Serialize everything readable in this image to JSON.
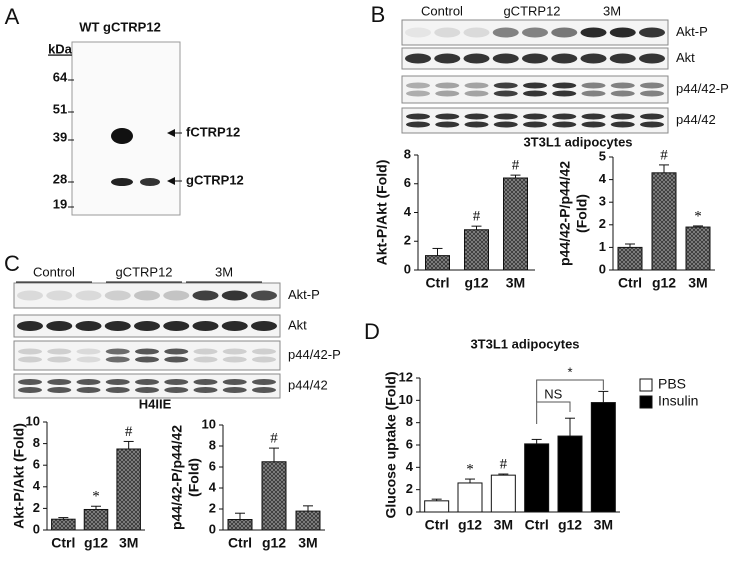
{
  "panel_letters": [
    "A",
    "B",
    "C",
    "D"
  ],
  "panel_a": {
    "title": "WT gCTRP12",
    "unit": "kDa",
    "markers": [
      "64",
      "51",
      "39",
      "28",
      "19"
    ],
    "bands": [
      "fCTRP12",
      "gCTRP12"
    ]
  },
  "panel_b": {
    "groups": [
      "Control",
      "gCTRP12",
      "3M"
    ],
    "rows": [
      "Akt-P",
      "Akt",
      "p44/42-P",
      "p44/42"
    ],
    "caption": "3T3L1 adipocytes"
  },
  "panel_c": {
    "groups": [
      "Control",
      "gCTRP12",
      "3M"
    ],
    "rows": [
      "Akt-P",
      "Akt",
      "p44/42-P",
      "p44/42"
    ],
    "caption": "H4IIE"
  },
  "chart_data": [
    {
      "type": "bar",
      "ylabel": "Akt-P/Akt (Fold)",
      "categories": [
        "Ctrl",
        "g12",
        "3M"
      ],
      "values": [
        1.0,
        2.8,
        6.4
      ],
      "errors": [
        0.5,
        0.25,
        0.2
      ],
      "markers": [
        null,
        "#",
        "#"
      ],
      "color": "#8a8a8a",
      "pattern": "crosshatch",
      "ylim": [
        0,
        8
      ],
      "yticks": [
        0,
        2,
        4,
        6,
        8
      ]
    },
    {
      "type": "bar",
      "ylabel": [
        "p44/42-P/p44/42",
        "(Fold)"
      ],
      "categories": [
        "Ctrl",
        "g12",
        "3M"
      ],
      "values": [
        1.0,
        4.3,
        1.9
      ],
      "errors": [
        0.15,
        0.35,
        0.05
      ],
      "markers": [
        null,
        "#",
        "*"
      ],
      "color": "#8a8a8a",
      "pattern": "crosshatch",
      "ylim": [
        0,
        5
      ],
      "yticks": [
        0,
        1,
        2,
        3,
        4,
        5
      ]
    },
    {
      "type": "bar",
      "ylabel": "Akt-P/Akt (Fold)",
      "categories": [
        "Ctrl",
        "g12",
        "3M"
      ],
      "values": [
        1.0,
        1.9,
        7.5
      ],
      "errors": [
        0.15,
        0.3,
        0.7
      ],
      "markers": [
        null,
        "*",
        "#"
      ],
      "color": "#8a8a8a",
      "pattern": "crosshatch",
      "ylim": [
        0,
        10
      ],
      "yticks": [
        0,
        2,
        4,
        6,
        8,
        10
      ]
    },
    {
      "type": "bar",
      "ylabel": [
        "p44/42-P/p44/42",
        "(Fold)"
      ],
      "categories": [
        "Ctrl",
        "g12",
        "3M"
      ],
      "values": [
        1.0,
        6.5,
        1.8
      ],
      "errors": [
        0.6,
        1.3,
        0.5
      ],
      "markers": [
        null,
        "#",
        null
      ],
      "color": "#8a8a8a",
      "pattern": "crosshatch",
      "ylim": [
        0,
        10
      ],
      "yticks": [
        0,
        2,
        4,
        6,
        8,
        10
      ]
    },
    {
      "type": "bar",
      "title": "3T3L1 adipocytes",
      "ylabel": "Glucose uptake (Fold)",
      "categories": [
        "Ctrl",
        "g12",
        "3M",
        "Ctrl",
        "g12",
        "3M"
      ],
      "series": [
        {
          "name": "PBS",
          "color": "#ffffff",
          "values": [
            1.0,
            2.6,
            3.3,
            null,
            null,
            null
          ],
          "errors": [
            0.15,
            0.35,
            0.1,
            null,
            null,
            null
          ],
          "markers": [
            null,
            "*",
            "#",
            null,
            null,
            null
          ]
        },
        {
          "name": "Insulin",
          "color": "#000000",
          "values": [
            null,
            null,
            null,
            6.1,
            6.8,
            9.8
          ],
          "errors": [
            null,
            null,
            null,
            0.4,
            1.6,
            1.0
          ],
          "markers": [
            null,
            null,
            null,
            null,
            null,
            null
          ]
        }
      ],
      "brackets": [
        "NS",
        "*"
      ],
      "ylim": [
        0,
        12
      ],
      "yticks": [
        0,
        2,
        4,
        6,
        8,
        10,
        12
      ]
    }
  ]
}
